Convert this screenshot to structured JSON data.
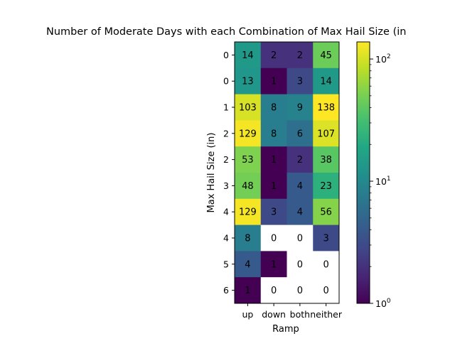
{
  "chart_data": {
    "type": "heatmap",
    "title": "Number of Moderate Days with each Combination of Max Hail Size (in",
    "xlabel": "Ramp",
    "ylabel": "Max Hail Size (in)",
    "x_categories": [
      "up",
      "down",
      "both",
      "neither"
    ],
    "y_categories": [
      "0",
      "0",
      "1",
      "2",
      "2",
      "3",
      "4",
      "4",
      "5",
      "6"
    ],
    "values": [
      [
        14,
        2,
        2,
        45
      ],
      [
        13,
        1,
        3,
        14
      ],
      [
        103,
        8,
        9,
        138
      ],
      [
        129,
        8,
        6,
        107
      ],
      [
        53,
        1,
        2,
        38
      ],
      [
        48,
        1,
        4,
        23
      ],
      [
        129,
        3,
        4,
        56
      ],
      [
        8,
        0,
        0,
        3
      ],
      [
        4,
        1,
        0,
        0
      ],
      [
        1,
        0,
        0,
        0
      ]
    ],
    "colormap": "viridis",
    "color_scale": "log",
    "color_range": [
      1,
      138
    ],
    "zero_cell_color": "#ffffff",
    "colorbar": {
      "ticks": [
        {
          "base": "10",
          "exp": "0",
          "value": 1
        },
        {
          "base": "10",
          "exp": "1",
          "value": 10
        },
        {
          "base": "10",
          "exp": "2",
          "value": 100
        }
      ]
    }
  }
}
